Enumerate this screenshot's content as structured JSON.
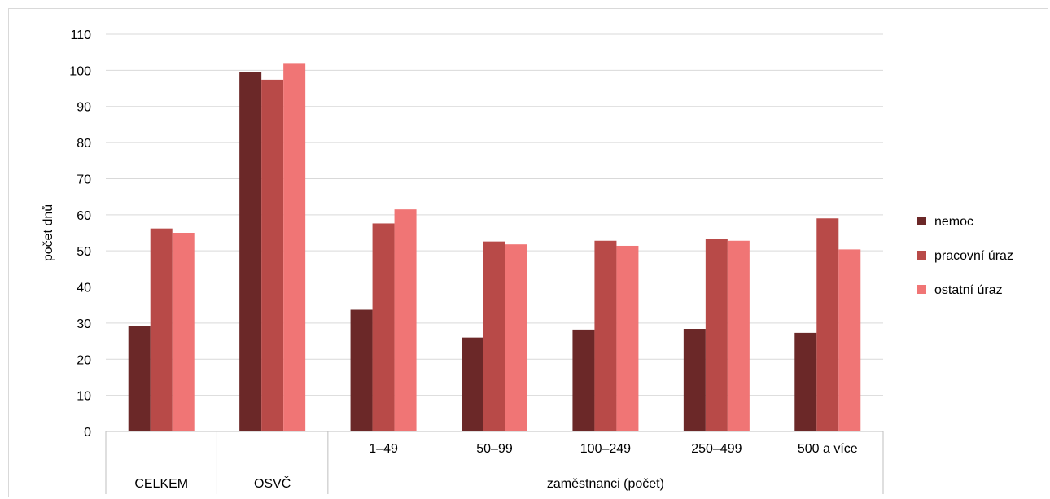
{
  "chart_data": {
    "type": "bar",
    "ylabel": "počet dnů",
    "ylim": [
      0,
      110
    ],
    "ytick_step": 10,
    "grid": true,
    "legend_position": "right",
    "categories": [
      "CELKEM",
      "OSVČ",
      "1–49",
      "50–99",
      "100–249",
      "250–499",
      "500 a více"
    ],
    "group_label": "zaměstnanci (počet)",
    "series": [
      {
        "name": "nemoc",
        "color": "#6b2828",
        "values": [
          29.3,
          99.5,
          33.7,
          26.0,
          28.2,
          28.4,
          27.3
        ]
      },
      {
        "name": "pracovní úraz",
        "color": "#b84a48",
        "values": [
          56.2,
          97.4,
          57.6,
          52.6,
          52.8,
          53.2,
          59.0
        ]
      },
      {
        "name": "ostatní úraz",
        "color": "#f07575",
        "values": [
          55.0,
          101.8,
          61.5,
          51.8,
          51.4,
          52.8,
          50.4
        ]
      }
    ]
  }
}
